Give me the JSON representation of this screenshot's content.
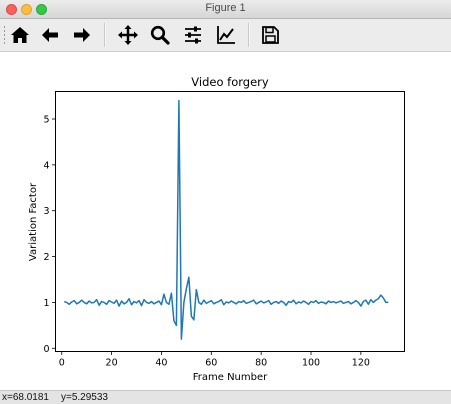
{
  "window": {
    "title": "Figure 1"
  },
  "toolbar": {
    "buttons": [
      {
        "name": "home-button",
        "icon": "home-icon"
      },
      {
        "name": "back-button",
        "icon": "arrow-left-icon"
      },
      {
        "name": "forward-button",
        "icon": "arrow-right-icon"
      },
      {
        "name": "pan-button",
        "icon": "move-icon"
      },
      {
        "name": "zoom-button",
        "icon": "magnifier-icon"
      },
      {
        "name": "configure-subplots-button",
        "icon": "sliders-icon"
      },
      {
        "name": "edit-axis-button",
        "icon": "chart-line-icon"
      },
      {
        "name": "save-button",
        "icon": "floppy-disk-icon"
      }
    ]
  },
  "status": {
    "x_readout": "x=68.0181",
    "y_readout": "y=5.29533"
  },
  "colors": {
    "line": "#1f77b4",
    "accent": "#1f77b4"
  },
  "chart_data": {
    "type": "line",
    "title": "Video forgery",
    "xlabel": "Frame Number",
    "ylabel": "Variation Factor",
    "xlim": [
      -2.5,
      137.5
    ],
    "ylim": [
      -0.07,
      5.6
    ],
    "xticks": [
      0,
      20,
      40,
      60,
      80,
      100,
      120
    ],
    "yticks": [
      0,
      1,
      2,
      3,
      4,
      5
    ],
    "grid": false,
    "series": [
      {
        "color": "#1f77b4",
        "x": [
          1,
          2,
          3,
          4,
          5,
          6,
          7,
          8,
          9,
          10,
          11,
          12,
          13,
          14,
          15,
          16,
          17,
          18,
          19,
          20,
          21,
          22,
          23,
          24,
          25,
          26,
          27,
          28,
          29,
          30,
          31,
          32,
          33,
          34,
          35,
          36,
          37,
          38,
          39,
          40,
          41,
          42,
          43,
          44,
          45,
          46,
          47,
          48,
          49,
          50,
          51,
          52,
          53,
          54,
          55,
          56,
          57,
          58,
          59,
          60,
          61,
          62,
          63,
          64,
          65,
          66,
          67,
          68,
          69,
          70,
          71,
          72,
          73,
          74,
          75,
          76,
          77,
          78,
          79,
          80,
          81,
          82,
          83,
          84,
          85,
          86,
          87,
          88,
          89,
          90,
          91,
          92,
          93,
          94,
          95,
          96,
          97,
          98,
          99,
          100,
          101,
          102,
          103,
          104,
          105,
          106,
          107,
          108,
          109,
          110,
          111,
          112,
          113,
          114,
          115,
          116,
          117,
          118,
          119,
          120,
          121,
          122,
          123,
          124,
          125,
          126,
          127,
          128,
          129,
          130,
          131
        ],
        "y": [
          1.02,
          1.0,
          0.96,
          1.01,
          1.04,
          0.97,
          1.0,
          1.05,
          1.0,
          0.97,
          1.03,
          0.99,
          1.0,
          1.06,
          0.94,
          1.02,
          1.0,
          0.96,
          1.04,
          1.01,
          0.98,
          1.05,
          0.92,
          1.03,
          0.97,
          1.0,
          1.08,
          0.95,
          1.02,
          0.99,
          1.04,
          0.93,
          1.06,
          1.0,
          0.98,
          1.02,
          0.97,
          1.0,
          1.03,
          0.95,
          1.18,
          1.0,
          0.96,
          1.2,
          0.6,
          0.5,
          5.4,
          0.2,
          1.0,
          1.3,
          1.55,
          0.7,
          0.62,
          1.28,
          1.0,
          0.96,
          1.05,
          0.98,
          1.01,
          1.04,
          0.97,
          1.0,
          1.02,
          1.06,
          0.95,
          1.01,
          0.99,
          1.03,
          1.0,
          0.97,
          1.02,
          1.0,
          1.04,
          0.98,
          1.0,
          1.02,
          1.05,
          0.97,
          1.0,
          1.03,
          0.99,
          1.01,
          1.04,
          0.96,
          1.0,
          1.02,
          0.98,
          1.03,
          1.0,
          0.94,
          1.02,
          1.0,
          1.05,
          0.97,
          1.01,
          0.99,
          1.03,
          1.0,
          0.96,
          1.02,
          1.0,
          1.04,
          0.98,
          1.01,
          1.0,
          0.97,
          1.03,
          1.0,
          1.02,
          0.99,
          1.01,
          1.03,
          0.98,
          1.0,
          1.02,
          0.97,
          1.0,
          1.04,
          1.0,
          0.92,
          1.02,
          1.05,
          0.96,
          1.06,
          1.0,
          1.05,
          1.08,
          1.16,
          1.1,
          1.0,
          1.0
        ]
      }
    ]
  }
}
